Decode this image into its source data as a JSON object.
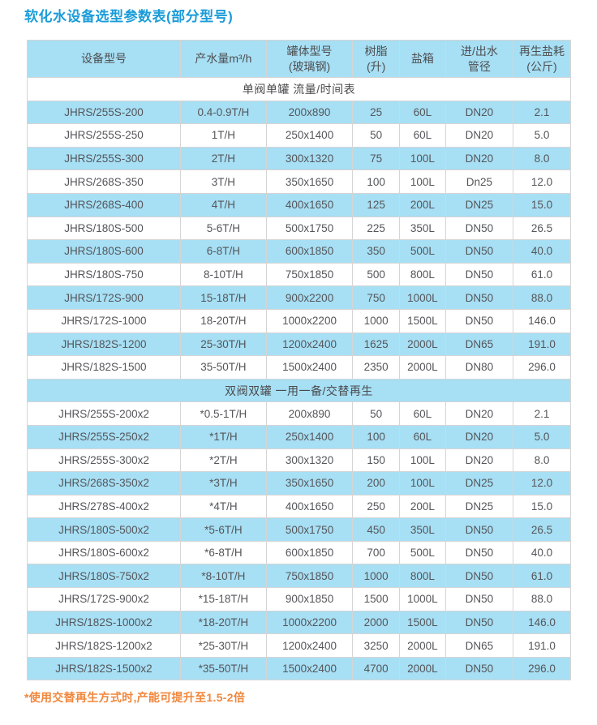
{
  "page": {
    "title": "软化水设备选型参数表(部分型号)",
    "footnote": "*使用交替再生方式时,产能可提升至1.5-2倍"
  },
  "colors": {
    "title_blue": "#1b9cd8",
    "row_blue": "#a7dff4",
    "footnote_orange": "#f0873c",
    "text_gray": "#55565a",
    "border_gray": "#d5d5d5"
  },
  "table": {
    "columns": [
      "设备型号",
      "产水量m³/h",
      "罐体型号\n(玻璃钢)",
      "树脂\n(升)",
      "盐箱",
      "进/出水\n管径",
      "再生盐耗\n(公斤)"
    ],
    "sections": [
      {
        "header": "单阀单罐 流量/时间表",
        "rows": [
          [
            "JHRS/255S-200",
            "0.4-0.9T/H",
            "200x890",
            "25",
            "60L",
            "DN20",
            "2.1"
          ],
          [
            "JHRS/255S-250",
            "1T/H",
            "250x1400",
            "50",
            "60L",
            "DN20",
            "5.0"
          ],
          [
            "JHRS/255S-300",
            "2T/H",
            "300x1320",
            "75",
            "100L",
            "DN20",
            "8.0"
          ],
          [
            "JHRS/268S-350",
            "3T/H",
            "350x1650",
            "100",
            "100L",
            "Dn25",
            "12.0"
          ],
          [
            "JHRS/268S-400",
            "4T/H",
            "400x1650",
            "125",
            "200L",
            "DN25",
            "15.0"
          ],
          [
            "JHRS/180S-500",
            "5-6T/H",
            "500x1750",
            "225",
            "350L",
            "DN50",
            "26.5"
          ],
          [
            "JHRS/180S-600",
            "6-8T/H",
            "600x1850",
            "350",
            "500L",
            "DN50",
            "40.0"
          ],
          [
            "JHRS/180S-750",
            "8-10T/H",
            "750x1850",
            "500",
            "800L",
            "DN50",
            "61.0"
          ],
          [
            "JHRS/172S-900",
            "15-18T/H",
            "900x2200",
            "750",
            "1000L",
            "DN50",
            "88.0"
          ],
          [
            "JHRS/172S-1000",
            "18-20T/H",
            "1000x2200",
            "1000",
            "1500L",
            "DN50",
            "146.0"
          ],
          [
            "JHRS/182S-1200",
            "25-30T/H",
            "1200x2400",
            "1625",
            "2000L",
            "DN65",
            "191.0"
          ],
          [
            "JHRS/182S-1500",
            "35-50T/H",
            "1500x2400",
            "2350",
            "2000L",
            "DN80",
            "296.0"
          ]
        ]
      },
      {
        "header": "双阀双罐 一用一备/交替再生",
        "rows": [
          [
            "JHRS/255S-200x2",
            "*0.5-1T/H",
            "200x890",
            "50",
            "60L",
            "DN20",
            "2.1"
          ],
          [
            "JHRS/255S-250x2",
            "*1T/H",
            "250x1400",
            "100",
            "60L",
            "DN20",
            "5.0"
          ],
          [
            "JHRS/255S-300x2",
            "*2T/H",
            "300x1320",
            "150",
            "100L",
            "DN20",
            "8.0"
          ],
          [
            "JHRS/268S-350x2",
            "*3T/H",
            "350x1650",
            "200",
            "100L",
            "DN25",
            "12.0"
          ],
          [
            "JHRS/278S-400x2",
            "*4T/H",
            "400x1650",
            "250",
            "200L",
            "DN25",
            "15.0"
          ],
          [
            "JHRS/180S-500x2",
            "*5-6T/H",
            "500x1750",
            "450",
            "350L",
            "DN50",
            "26.5"
          ],
          [
            "JHRS/180S-600x2",
            "*6-8T/H",
            "600x1850",
            "700",
            "500L",
            "DN50",
            "40.0"
          ],
          [
            "JHRS/180S-750x2",
            "*8-10T/H",
            "750x1850",
            "1000",
            "800L",
            "DN50",
            "61.0"
          ],
          [
            "JHRS/172S-900x2",
            "*15-18T/H",
            "900x1850",
            "1500",
            "1000L",
            "DN50",
            "88.0"
          ],
          [
            "JHRS/182S-1000x2",
            "*18-20T/H",
            "1000x2200",
            "2000",
            "1500L",
            "DN50",
            "146.0"
          ],
          [
            "JHRS/182S-1200x2",
            "*25-30T/H",
            "1200x2400",
            "3250",
            "2000L",
            "DN65",
            "191.0"
          ],
          [
            "JHRS/182S-1500x2",
            "*35-50T/H",
            "1500x2400",
            "4700",
            "2000L",
            "DN50",
            "296.0"
          ]
        ]
      }
    ]
  }
}
